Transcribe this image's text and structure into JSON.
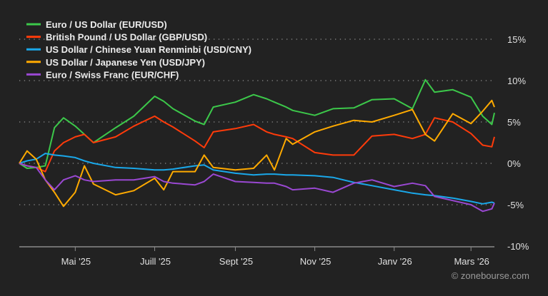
{
  "chart_data": {
    "type": "line",
    "title": "",
    "xlabel": "",
    "ylabel": "",
    "ylim": [
      -10,
      15
    ],
    "y_ticks": [
      "15%",
      "10%",
      "5%",
      "0%",
      "-5%",
      "-10%"
    ],
    "y_tick_values": [
      15,
      10,
      5,
      0,
      -5,
      -10
    ],
    "x_ticks": [
      "Mai '25",
      "Juill '25",
      "Sept '25",
      "Nov '25",
      "Janv '26",
      "Mars '26"
    ],
    "x_tick_dates": [
      "2025-05-01",
      "2025-07-01",
      "2025-09-01",
      "2025-11-01",
      "2026-01-01",
      "2026-03-01"
    ],
    "xlim": [
      "2025-03-19",
      "2026-03-19"
    ],
    "grid": "horizontal dotted",
    "legend_position": "top-left",
    "background": "#222222",
    "x": [
      "2025-03-19",
      "2025-03-25",
      "2025-04-01",
      "2025-04-08",
      "2025-04-15",
      "2025-04-22",
      "2025-05-01",
      "2025-05-08",
      "2025-05-15",
      "2025-06-01",
      "2025-06-15",
      "2025-07-01",
      "2025-07-08",
      "2025-07-15",
      "2025-08-01",
      "2025-08-08",
      "2025-08-15",
      "2025-09-01",
      "2025-09-15",
      "2025-09-25",
      "2025-10-01",
      "2025-10-10",
      "2025-10-15",
      "2025-11-01",
      "2025-11-15",
      "2025-12-01",
      "2025-12-15",
      "2026-01-01",
      "2026-01-15",
      "2026-01-25",
      "2026-02-01",
      "2026-02-15",
      "2026-03-01",
      "2026-03-10",
      "2026-03-17",
      "2026-03-19"
    ],
    "series": [
      {
        "name": "Euro / US Dollar (EUR/USD)",
        "color": "#3cc84a",
        "values": [
          0,
          -0.6,
          -0.5,
          -0.3,
          4.3,
          5.5,
          4.5,
          3.5,
          2.5,
          4.3,
          5.7,
          8.1,
          7.5,
          6.6,
          5.1,
          4.7,
          6.8,
          7.4,
          8.3,
          7.8,
          7.4,
          6.8,
          6.4,
          5.8,
          6.6,
          6.7,
          7.7,
          7.8,
          6.6,
          10.1,
          8.6,
          8.9,
          8.0,
          5.7,
          4.7,
          6.1
        ]
      },
      {
        "name": "British Pound / US Dollar (GBP/USD)",
        "color": "#ff3b0a",
        "values": [
          0,
          -0.3,
          -0.5,
          -1.0,
          1.5,
          2.5,
          3.2,
          3.5,
          2.5,
          3.2,
          4.5,
          5.7,
          5.0,
          4.4,
          2.7,
          1.9,
          3.8,
          4.2,
          4.7,
          3.8,
          3.5,
          3.2,
          3.0,
          1.3,
          1.0,
          1.0,
          3.3,
          3.5,
          3.0,
          3.5,
          5.5,
          5.0,
          3.6,
          2.2,
          2.0,
          3.2
        ]
      },
      {
        "name": "US Dollar / Chinese Yuan Renminbi (USD/CNY)",
        "color": "#1aa8ea",
        "values": [
          0,
          0.3,
          0.5,
          1.2,
          1.0,
          0.9,
          0.7,
          0.3,
          0.0,
          -0.5,
          -0.6,
          -0.8,
          -0.8,
          -0.7,
          -0.3,
          -0.2,
          -0.8,
          -1.2,
          -1.4,
          -1.3,
          -1.3,
          -1.4,
          -1.4,
          -1.5,
          -1.7,
          -2.3,
          -2.7,
          -3.2,
          -3.6,
          -3.8,
          -3.9,
          -4.2,
          -4.6,
          -4.9,
          -4.7,
          -4.8
        ]
      },
      {
        "name": "US Dollar / Japanese Yen (USD/JPY)",
        "color": "#ffaa00",
        "values": [
          0,
          1.5,
          0.5,
          -2.0,
          -3.5,
          -5.2,
          -3.5,
          -0.3,
          -2.5,
          -3.8,
          -3.3,
          -1.8,
          -3.2,
          -1.0,
          -1.0,
          1.0,
          -0.5,
          -0.8,
          -0.6,
          1.0,
          -0.8,
          3.0,
          2.3,
          3.8,
          4.5,
          5.2,
          5.0,
          5.8,
          6.5,
          3.5,
          2.7,
          6.0,
          4.8,
          6.3,
          7.6,
          6.8
        ]
      },
      {
        "name": "Euro / Swiss Franc (EUR/CHF)",
        "color": "#9a48d2",
        "values": [
          0,
          -0.3,
          -0.5,
          -2.0,
          -3.2,
          -2.0,
          -1.5,
          -2.0,
          -2.2,
          -2.0,
          -2.0,
          -1.6,
          -2.2,
          -2.4,
          -2.6,
          -2.2,
          -1.3,
          -2.2,
          -2.3,
          -2.4,
          -2.4,
          -2.8,
          -3.2,
          -3.0,
          -3.5,
          -2.4,
          -2.0,
          -2.8,
          -2.4,
          -2.7,
          -4.0,
          -4.5,
          -5.0,
          -5.8,
          -5.5,
          -4.8
        ]
      }
    ]
  },
  "watermark": "© zonebourse.com"
}
